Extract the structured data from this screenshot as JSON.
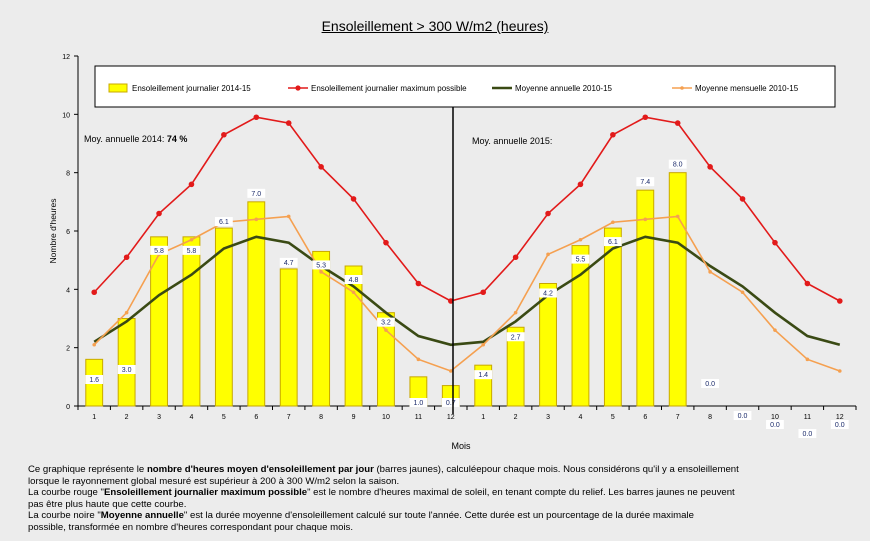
{
  "chart_data": {
    "type": "bar",
    "title": "Ensoleillement  > 300 W/m2 (heures)",
    "ylabel": "Nombre d'heures",
    "xlabel": "Mois",
    "ylim": [
      0,
      12
    ],
    "yticks": [
      "0",
      "2",
      "4",
      "6",
      "8",
      "10",
      "12"
    ],
    "categories": [
      "1",
      "2",
      "3",
      "4",
      "5",
      "6",
      "7",
      "8",
      "9",
      "10",
      "11",
      "12",
      "1",
      "2",
      "3",
      "4",
      "5",
      "6",
      "7",
      "8",
      "9",
      "10",
      "11",
      "12"
    ],
    "legend_position": "top",
    "grid": false,
    "divider_after_index": 11,
    "series": [
      {
        "name": "Ensoleillement journalier 2014-15",
        "kind": "bar",
        "color": "#ffff00",
        "edge_color": "#c8a800",
        "values": [
          1.6,
          3.0,
          5.8,
          5.8,
          6.1,
          7.0,
          4.7,
          5.3,
          4.8,
          3.2,
          1.0,
          0.7,
          1.4,
          2.7,
          4.2,
          5.5,
          6.1,
          7.4,
          8.0,
          0.0,
          0.0,
          0.0,
          0.0,
          0.0
        ],
        "labels": [
          "1.6",
          "3.0",
          "5.8",
          "5.8",
          "6.1",
          "7.0",
          "4.7",
          "5.3",
          "4.8",
          "3.2",
          "1.0",
          "0.7",
          "1.4",
          "2.7",
          "4.2",
          "5.5",
          "6.1",
          "7.4",
          "8.0",
          "0.0",
          "0.0",
          "0.0",
          "0.0",
          "0.0"
        ]
      },
      {
        "name": "Ensoleillement journalier maximum possible",
        "kind": "line",
        "color": "#e21a1a",
        "marker": "circle",
        "values": [
          3.9,
          5.1,
          6.6,
          7.6,
          9.3,
          9.9,
          9.7,
          8.2,
          7.1,
          5.6,
          4.2,
          3.6,
          3.9,
          5.1,
          6.6,
          7.6,
          9.3,
          9.9,
          9.7,
          8.2,
          7.1,
          5.6,
          4.2,
          3.6
        ]
      },
      {
        "name": "Moyenne annuelle 2010-15",
        "kind": "line",
        "color": "#3a4a14",
        "marker": "none",
        "values": [
          2.2,
          2.9,
          3.8,
          4.5,
          5.4,
          5.8,
          5.6,
          4.8,
          4.1,
          3.2,
          2.4,
          2.1,
          2.2,
          2.9,
          3.8,
          4.5,
          5.4,
          5.8,
          5.6,
          4.8,
          4.1,
          3.2,
          2.4,
          2.1
        ]
      },
      {
        "name": "Moyenne mensuelle 2010-15",
        "kind": "line",
        "color": "#f5a050",
        "marker": "dot",
        "values": [
          2.1,
          3.2,
          5.2,
          5.7,
          6.3,
          6.4,
          6.5,
          4.6,
          3.9,
          2.6,
          1.6,
          1.2,
          2.1,
          3.2,
          5.2,
          5.7,
          6.3,
          6.4,
          6.5,
          4.6,
          3.9,
          2.6,
          1.6,
          1.2
        ]
      }
    ],
    "annotations": [
      {
        "pre": "Moy. annuelle 2014: ",
        "bold": "74 %"
      },
      {
        "pre": "Moy. annuelle 2015:",
        "bold": ""
      }
    ]
  },
  "description": [
    {
      "parts": [
        [
          "Ce graphique  représente le ",
          false
        ],
        [
          "nombre d'heures moyen d'ensoleillement par jour",
          true
        ],
        [
          " (barres  jaunes), calculéepour chaque mois. Nous considérons qu'il y a ensoleillement",
          false
        ]
      ]
    },
    {
      "parts": [
        [
          "lorsque le rayonnement global mesuré est supérieur à 200 à 300 W/m2 selon la saison.",
          false
        ]
      ]
    },
    {
      "parts": [
        [
          "La courbe rouge \"",
          false
        ],
        [
          "Ensoleillement journalier  maximum possible",
          true
        ],
        [
          "\" est le  nombre d'heures maximal de soleil, en tenant compte du relief. Les barres jaunes ne peuvent",
          false
        ]
      ]
    },
    {
      "parts": [
        [
          "pas être plus haute que cette courbe.",
          false
        ]
      ]
    },
    {
      "parts": [
        [
          "La courbe noire \"",
          false
        ],
        [
          "Moyenne annuelle",
          true
        ],
        [
          "\"  est la durée moyenne d'ensoleillement  calculé sur toute l'année. Cette durée est un pourcentage de la durée maximale",
          false
        ]
      ]
    },
    {
      "parts": [
        [
          "possible, transformée en nombre d'heures correspondant pour chaque mois.",
          false
        ]
      ]
    }
  ]
}
